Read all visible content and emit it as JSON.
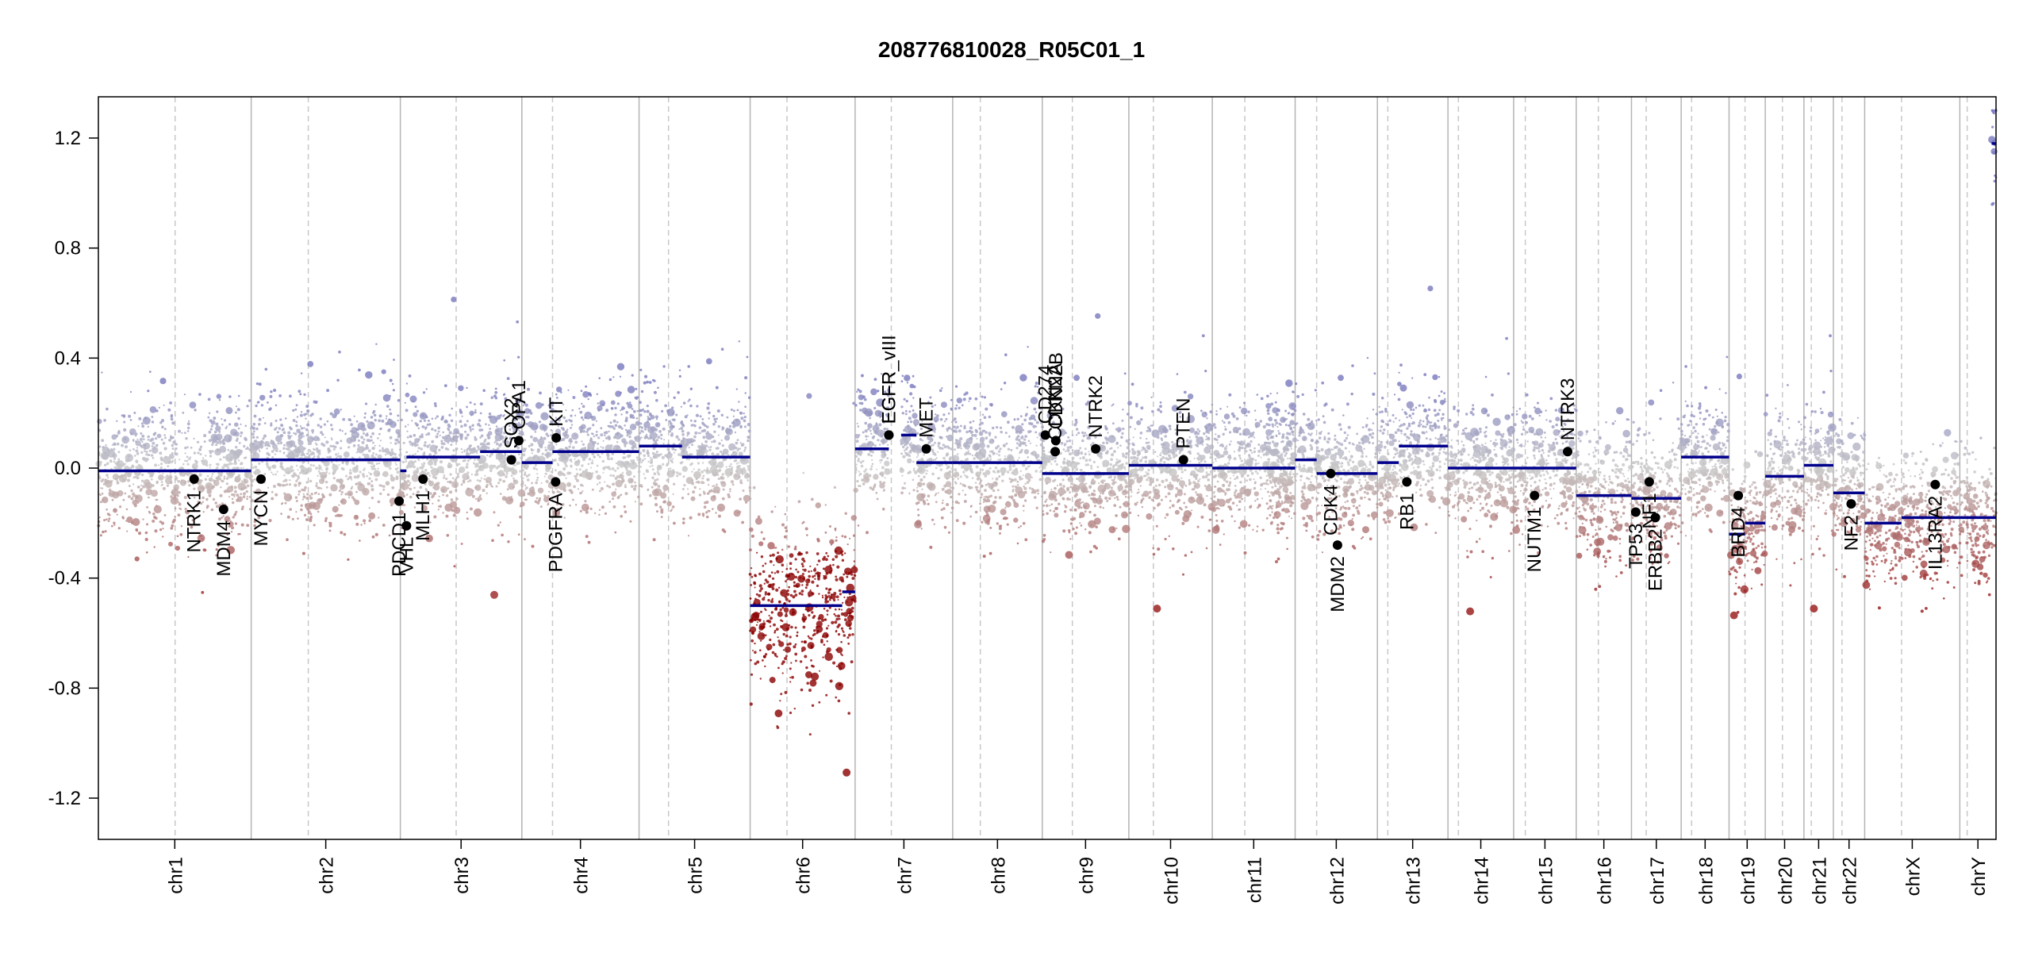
{
  "chart_data": {
    "type": "scatter",
    "title": "208776810028_R05C01_1",
    "xlabel": "",
    "ylabel": "",
    "ylim": [
      -1.35,
      1.35
    ],
    "yticks": [
      1.2,
      0.8,
      0.4,
      0.0,
      -0.4,
      -0.8,
      -1.2
    ],
    "ytick_labels": [
      "1.2",
      "0.8",
      "0.4",
      "0.0",
      "-0.4",
      "-0.8",
      "-1.2"
    ],
    "chromosomes": [
      {
        "name": "chr1",
        "length": 249
      },
      {
        "name": "chr2",
        "length": 243
      },
      {
        "name": "chr3",
        "length": 198
      },
      {
        "name": "chr4",
        "length": 191
      },
      {
        "name": "chr5",
        "length": 181
      },
      {
        "name": "chr6",
        "length": 171
      },
      {
        "name": "chr7",
        "length": 159
      },
      {
        "name": "chr8",
        "length": 146
      },
      {
        "name": "chr9",
        "length": 141
      },
      {
        "name": "chr10",
        "length": 136
      },
      {
        "name": "chr11",
        "length": 135
      },
      {
        "name": "chr12",
        "length": 134
      },
      {
        "name": "chr13",
        "length": 115
      },
      {
        "name": "chr14",
        "length": 107
      },
      {
        "name": "chr15",
        "length": 102
      },
      {
        "name": "chr16",
        "length": 90
      },
      {
        "name": "chr17",
        "length": 81
      },
      {
        "name": "chr18",
        "length": 78
      },
      {
        "name": "chr19",
        "length": 59
      },
      {
        "name": "chr20",
        "length": 63
      },
      {
        "name": "chr21",
        "length": 48
      },
      {
        "name": "chr22",
        "length": 51
      },
      {
        "name": "chrX",
        "length": 155
      },
      {
        "name": "chrY",
        "length": 59
      }
    ],
    "centromeres": [
      125,
      93,
      91,
      50,
      48,
      60,
      59,
      45,
      49,
      40,
      53,
      35,
      17,
      17,
      19,
      36,
      24,
      17,
      26,
      28,
      12,
      14,
      60,
      12
    ],
    "segments": [
      {
        "chr": "chr1",
        "start": 0,
        "end": 249,
        "value": -0.01
      },
      {
        "chr": "chr2",
        "start": 0,
        "end": 243,
        "value": 0.03
      },
      {
        "chr": "chr3",
        "start": 0,
        "end": 10,
        "value": -0.01
      },
      {
        "chr": "chr3",
        "start": 10,
        "end": 130,
        "value": 0.04
      },
      {
        "chr": "chr3",
        "start": 130,
        "end": 198,
        "value": 0.06
      },
      {
        "chr": "chr4",
        "start": 0,
        "end": 50,
        "value": 0.02
      },
      {
        "chr": "chr4",
        "start": 50,
        "end": 191,
        "value": 0.06
      },
      {
        "chr": "chr5",
        "start": 0,
        "end": 70,
        "value": 0.08
      },
      {
        "chr": "chr5",
        "start": 70,
        "end": 181,
        "value": 0.04
      },
      {
        "chr": "chr6",
        "start": 0,
        "end": 150,
        "value": -0.5
      },
      {
        "chr": "chr6",
        "start": 150,
        "end": 171,
        "value": -0.45
      },
      {
        "chr": "chr7",
        "start": 0,
        "end": 55,
        "value": 0.07
      },
      {
        "chr": "chr7",
        "start": 75,
        "end": 100,
        "value": 0.12
      },
      {
        "chr": "chr7",
        "start": 100,
        "end": 159,
        "value": 0.02
      },
      {
        "chr": "chr8",
        "start": 0,
        "end": 146,
        "value": 0.02
      },
      {
        "chr": "chr9",
        "start": 0,
        "end": 141,
        "value": -0.02
      },
      {
        "chr": "chr10",
        "start": 0,
        "end": 136,
        "value": 0.01
      },
      {
        "chr": "chr11",
        "start": 0,
        "end": 135,
        "value": 0.0
      },
      {
        "chr": "chr11",
        "start": 88,
        "end": 135,
        "value": 0.0
      },
      {
        "chr": "chr12",
        "start": 0,
        "end": 35,
        "value": 0.03
      },
      {
        "chr": "chr12",
        "start": 35,
        "end": 134,
        "value": -0.02
      },
      {
        "chr": "chr13",
        "start": 0,
        "end": 35,
        "value": 0.02
      },
      {
        "chr": "chr13",
        "start": 35,
        "end": 115,
        "value": 0.08
      },
      {
        "chr": "chr14",
        "start": 0,
        "end": 107,
        "value": 0.0
      },
      {
        "chr": "chr15",
        "start": 0,
        "end": 102,
        "value": 0.0
      },
      {
        "chr": "chr16",
        "start": 0,
        "end": 90,
        "value": -0.1
      },
      {
        "chr": "chr17",
        "start": 0,
        "end": 81,
        "value": -0.11
      },
      {
        "chr": "chr18",
        "start": 0,
        "end": 78,
        "value": 0.04
      },
      {
        "chr": "chr19",
        "start": 0,
        "end": 26,
        "value": -0.24
      },
      {
        "chr": "chr19",
        "start": 26,
        "end": 59,
        "value": -0.2
      },
      {
        "chr": "chr20",
        "start": 0,
        "end": 63,
        "value": -0.03
      },
      {
        "chr": "chr21",
        "start": 0,
        "end": 48,
        "value": 0.01
      },
      {
        "chr": "chr22",
        "start": 0,
        "end": 51,
        "value": -0.09
      },
      {
        "chr": "chrX",
        "start": 0,
        "end": 60,
        "value": -0.2
      },
      {
        "chr": "chrX",
        "start": 60,
        "end": 155,
        "value": -0.18
      },
      {
        "chr": "chrY",
        "start": 0,
        "end": 59,
        "value": -0.18
      },
      {
        "chr": "chrY",
        "start": 52,
        "end": 59,
        "value": 1.18
      }
    ],
    "genes": [
      {
        "name": "NTRK1",
        "chr": "chr1",
        "pos": 156,
        "value": -0.04,
        "side": "below"
      },
      {
        "name": "MDM4",
        "chr": "chr1",
        "pos": 204,
        "value": -0.15,
        "side": "below"
      },
      {
        "name": "MYCN",
        "chr": "chr2",
        "pos": 16,
        "value": -0.04,
        "side": "below"
      },
      {
        "name": "PDCD1",
        "chr": "chr2",
        "pos": 241,
        "value": -0.12,
        "side": "below"
      },
      {
        "name": "VHL",
        "chr": "chr3",
        "pos": 10,
        "value": -0.21,
        "side": "below"
      },
      {
        "name": "MLH1",
        "chr": "chr3",
        "pos": 37,
        "value": -0.04,
        "side": "below"
      },
      {
        "name": "SOX2",
        "chr": "chr3",
        "pos": 181,
        "value": 0.03,
        "side": "above"
      },
      {
        "name": "OPA1",
        "chr": "chr3",
        "pos": 193,
        "value": 0.1,
        "side": "above"
      },
      {
        "name": "PDGFRA",
        "chr": "chr4",
        "pos": 55,
        "value": -0.05,
        "side": "below"
      },
      {
        "name": "KIT",
        "chr": "chr4",
        "pos": 56,
        "value": 0.11,
        "side": "above"
      },
      {
        "name": "EGFR",
        "chr": "chr7",
        "pos": 55,
        "value": 0.12,
        "side": "above"
      },
      {
        "name": "EGFR_vIII",
        "chr": "chr7",
        "pos": 55,
        "value": 0.12,
        "side": "above"
      },
      {
        "name": "MET",
        "chr": "chr7",
        "pos": 116,
        "value": 0.07,
        "side": "above"
      },
      {
        "name": "CD274",
        "chr": "chr9",
        "pos": 5,
        "value": 0.12,
        "side": "above"
      },
      {
        "name": "CDKN2A",
        "chr": "chr9",
        "pos": 21,
        "value": 0.06,
        "side": "above"
      },
      {
        "name": "CDKN2B",
        "chr": "chr9",
        "pos": 22,
        "value": 0.1,
        "side": "above"
      },
      {
        "name": "NTRK2",
        "chr": "chr9",
        "pos": 87,
        "value": 0.07,
        "side": "above"
      },
      {
        "name": "PTEN",
        "chr": "chr10",
        "pos": 89,
        "value": 0.03,
        "side": "above"
      },
      {
        "name": "MDM2",
        "chr": "chr12",
        "pos": 69,
        "value": -0.28,
        "side": "below"
      },
      {
        "name": "CDK4",
        "chr": "chr12",
        "pos": 58,
        "value": -0.02,
        "side": "below"
      },
      {
        "name": "RB1",
        "chr": "chr13",
        "pos": 48,
        "value": -0.05,
        "side": "below"
      },
      {
        "name": "NUTM1",
        "chr": "chr15",
        "pos": 34,
        "value": -0.1,
        "side": "below"
      },
      {
        "name": "NTRK3",
        "chr": "chr15",
        "pos": 88,
        "value": 0.06,
        "side": "above"
      },
      {
        "name": "TP53",
        "chr": "chr17",
        "pos": 7,
        "value": -0.16,
        "side": "below"
      },
      {
        "name": "NF1",
        "chr": "chr17",
        "pos": 29,
        "value": -0.05,
        "side": "below"
      },
      {
        "name": "ERBB2",
        "chr": "chr17",
        "pos": 39,
        "value": -0.18,
        "side": "below"
      },
      {
        "name": "BRD4",
        "chr": "chr19",
        "pos": 15,
        "value": -0.1,
        "side": "below"
      },
      {
        "name": "NF2",
        "chr": "chr22",
        "pos": 29,
        "value": -0.13,
        "side": "below"
      },
      {
        "name": "IL13RA2",
        "chr": "chrX",
        "pos": 115,
        "value": -0.06,
        "side": "below"
      }
    ],
    "gene_labels": {
      "EGFR_vIII": "EGFR_vIII"
    },
    "colors": {
      "gain": "#7f7fc0",
      "neutral": "#c8c8c8",
      "loss": "#a83232",
      "deep_loss": "#8b0000",
      "segment": "#00008b",
      "gene_point": "#000000",
      "axis": "#000000",
      "chr_boundary": "#b4b4b4",
      "centromere": "#c8c8c8"
    },
    "grid": false
  }
}
